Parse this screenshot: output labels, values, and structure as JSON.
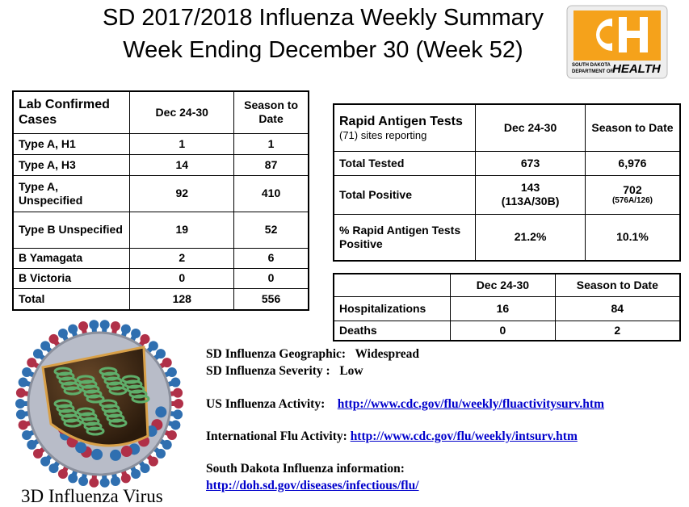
{
  "title": [
    "SD 2017/2018 Influenza Weekly Summary",
    "Week Ending December 30 (Week 52)"
  ],
  "logo": {
    "line1": "SOUTH DAKOTA",
    "line2": "DEPARTMENT OF",
    "word": "HEALTH"
  },
  "lab_table": {
    "header": [
      "Lab Confirmed Cases",
      "Dec 24-30",
      "Season to Date"
    ],
    "rows": [
      [
        "Type A, H1",
        "1",
        "1"
      ],
      [
        "Type A, H3",
        "14",
        "87"
      ],
      [
        "Type A, Unspecified",
        "92",
        "410"
      ],
      [
        "Type B Unspecified",
        "19",
        "52"
      ],
      [
        "B Yamagata",
        "2",
        "6"
      ],
      [
        "B Victoria",
        "0",
        "0"
      ],
      [
        "Total",
        "128",
        "556"
      ]
    ]
  },
  "rapid_table": {
    "header": [
      "Rapid Antigen Tests",
      "Dec 24-30",
      "Season to Date"
    ],
    "subheader": "(71) sites reporting",
    "rows": [
      [
        "Total Tested",
        "673",
        "6,976"
      ],
      [
        "Total Positive",
        "143",
        "702"
      ],
      [
        "% Rapid Antigen Tests Positive",
        "21.2%",
        "10.1%"
      ]
    ],
    "positive_breakdown": [
      "(113A/30B)",
      "(576A/126)"
    ]
  },
  "hosp_table": {
    "header": [
      "Dec 24-30",
      "Season to Date"
    ],
    "rows": [
      [
        "Hospitalizations",
        "16",
        "84"
      ],
      [
        "Deaths",
        "0",
        "2"
      ]
    ]
  },
  "info": {
    "geographic": {
      "label": "SD Influenza Geographic:",
      "value": "Widespread"
    },
    "severity": {
      "label": "SD Influenza Severity :",
      "value": "Low"
    },
    "us_activity": {
      "label": "US Influenza Activity:",
      "url": "http://www.cdc.gov/flu/weekly/fluactivitysurv.htm"
    },
    "international": {
      "label": "International Flu Activity:",
      "url": "http://www.cdc.gov/flu/weekly/intsurv.htm"
    },
    "sd_info": {
      "label": "South Dakota Influenza information:",
      "url": "http://doh.sd.gov/diseases/infectious/flu/"
    }
  },
  "caption": "3D Influenza Virus"
}
